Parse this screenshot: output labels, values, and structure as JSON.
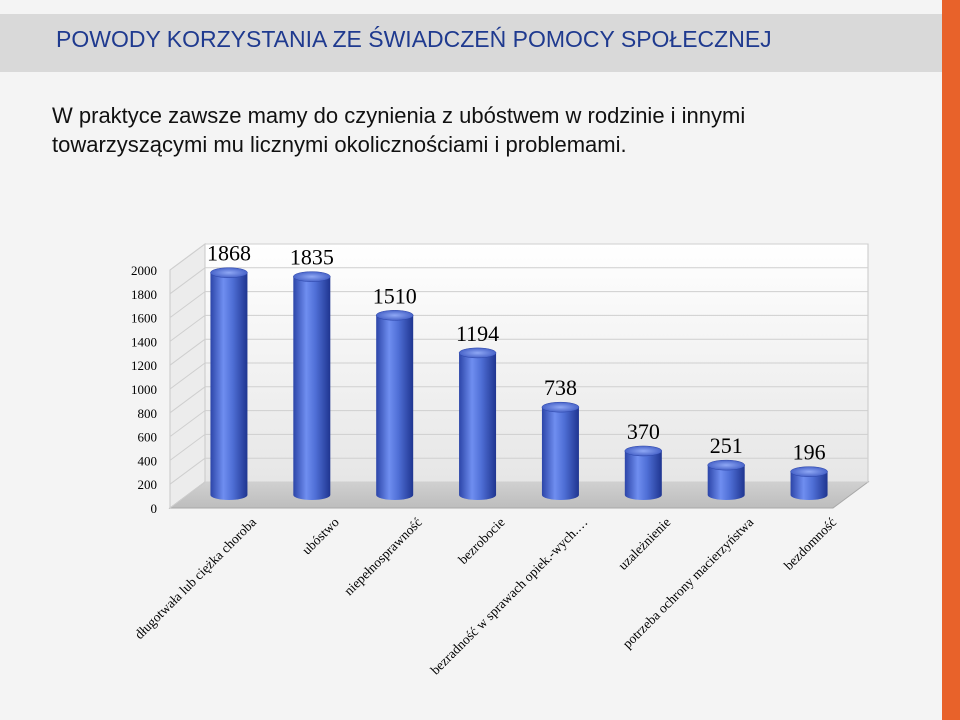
{
  "slide": {
    "title": "POWODY KORZYSTANIA ZE ŚWIADCZEŃ POMOCY SPOŁECZNEJ",
    "body_line1": "W praktyce zawsze mamy do czynienia z ubóstwem w rodzinie i innymi",
    "body_line2": "towarzyszącymi mu licznymi okolicznościami i problemami.",
    "accent_color": "#e8622a",
    "title_color": "#1f3a8f"
  },
  "chart_data": {
    "type": "bar",
    "style": "3d-cylinder",
    "categories": [
      "długotwała lub ciężka choroba",
      "ubóstwo",
      "niepełnosprawność",
      "bezrobocie",
      "bezradność w sprawach opiek.-wych.…",
      "uzależnienie",
      "potrzeba ochrony macierzyństwa",
      "bezdomność"
    ],
    "values": [
      1868,
      1835,
      1510,
      1194,
      738,
      370,
      251,
      196
    ],
    "ylim": [
      0,
      2000
    ],
    "yticks": [
      "0",
      "200",
      "400",
      "600",
      "800",
      "1000",
      "1200",
      "1400",
      "1600",
      "1800",
      "2000"
    ],
    "grid": true,
    "bar_color": "#4f6fd6"
  }
}
